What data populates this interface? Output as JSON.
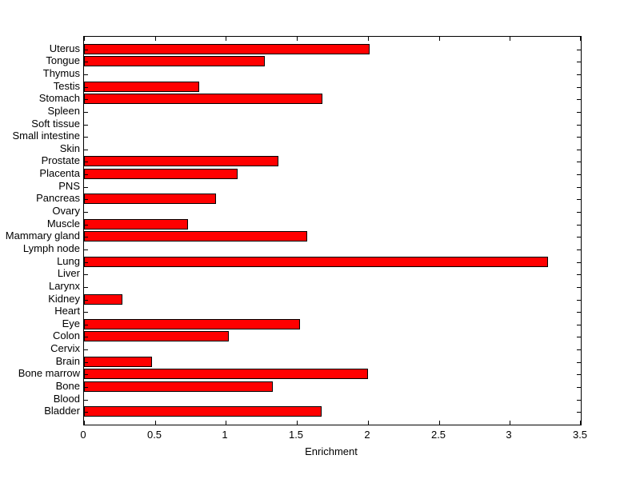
{
  "figure": {
    "background": "#ffffff"
  },
  "chart_data": {
    "type": "bar",
    "orientation": "horizontal",
    "title": "",
    "xlabel": "Enrichment",
    "ylabel": "",
    "xlim": [
      0,
      3.5
    ],
    "xticks": [
      0,
      0.5,
      1,
      1.5,
      2,
      2.5,
      3,
      3.5
    ],
    "xtick_labels": [
      "0",
      "0.5",
      "1",
      "1.5",
      "2",
      "2.5",
      "3",
      "3.5"
    ],
    "grid": false,
    "legend": "none",
    "bar_color": "#ff0000",
    "bar_edge_color": "#000000",
    "axis_color": "#000000",
    "categories": [
      "Uterus",
      "Tongue",
      "Thymus",
      "Testis",
      "Stomach",
      "Spleen",
      "Soft tissue",
      "Small intestine",
      "Skin",
      "Prostate",
      "Placenta",
      "PNS",
      "Pancreas",
      "Ovary",
      "Muscle",
      "Mammary gland",
      "Lymph node",
      "Lung",
      "Liver",
      "Larynx",
      "Kidney",
      "Heart",
      "Eye",
      "Colon",
      "Cervix",
      "Brain",
      "Bone marrow",
      "Bone",
      "Blood",
      "Bladder"
    ],
    "values": [
      2.0,
      1.26,
      0,
      0.8,
      1.67,
      0,
      0,
      0,
      0,
      1.36,
      1.07,
      0,
      0.92,
      0,
      0.72,
      1.56,
      0,
      3.26,
      0,
      0,
      0.26,
      0,
      1.51,
      1.01,
      0,
      0.47,
      1.99,
      1.32,
      0,
      1.66
    ]
  }
}
